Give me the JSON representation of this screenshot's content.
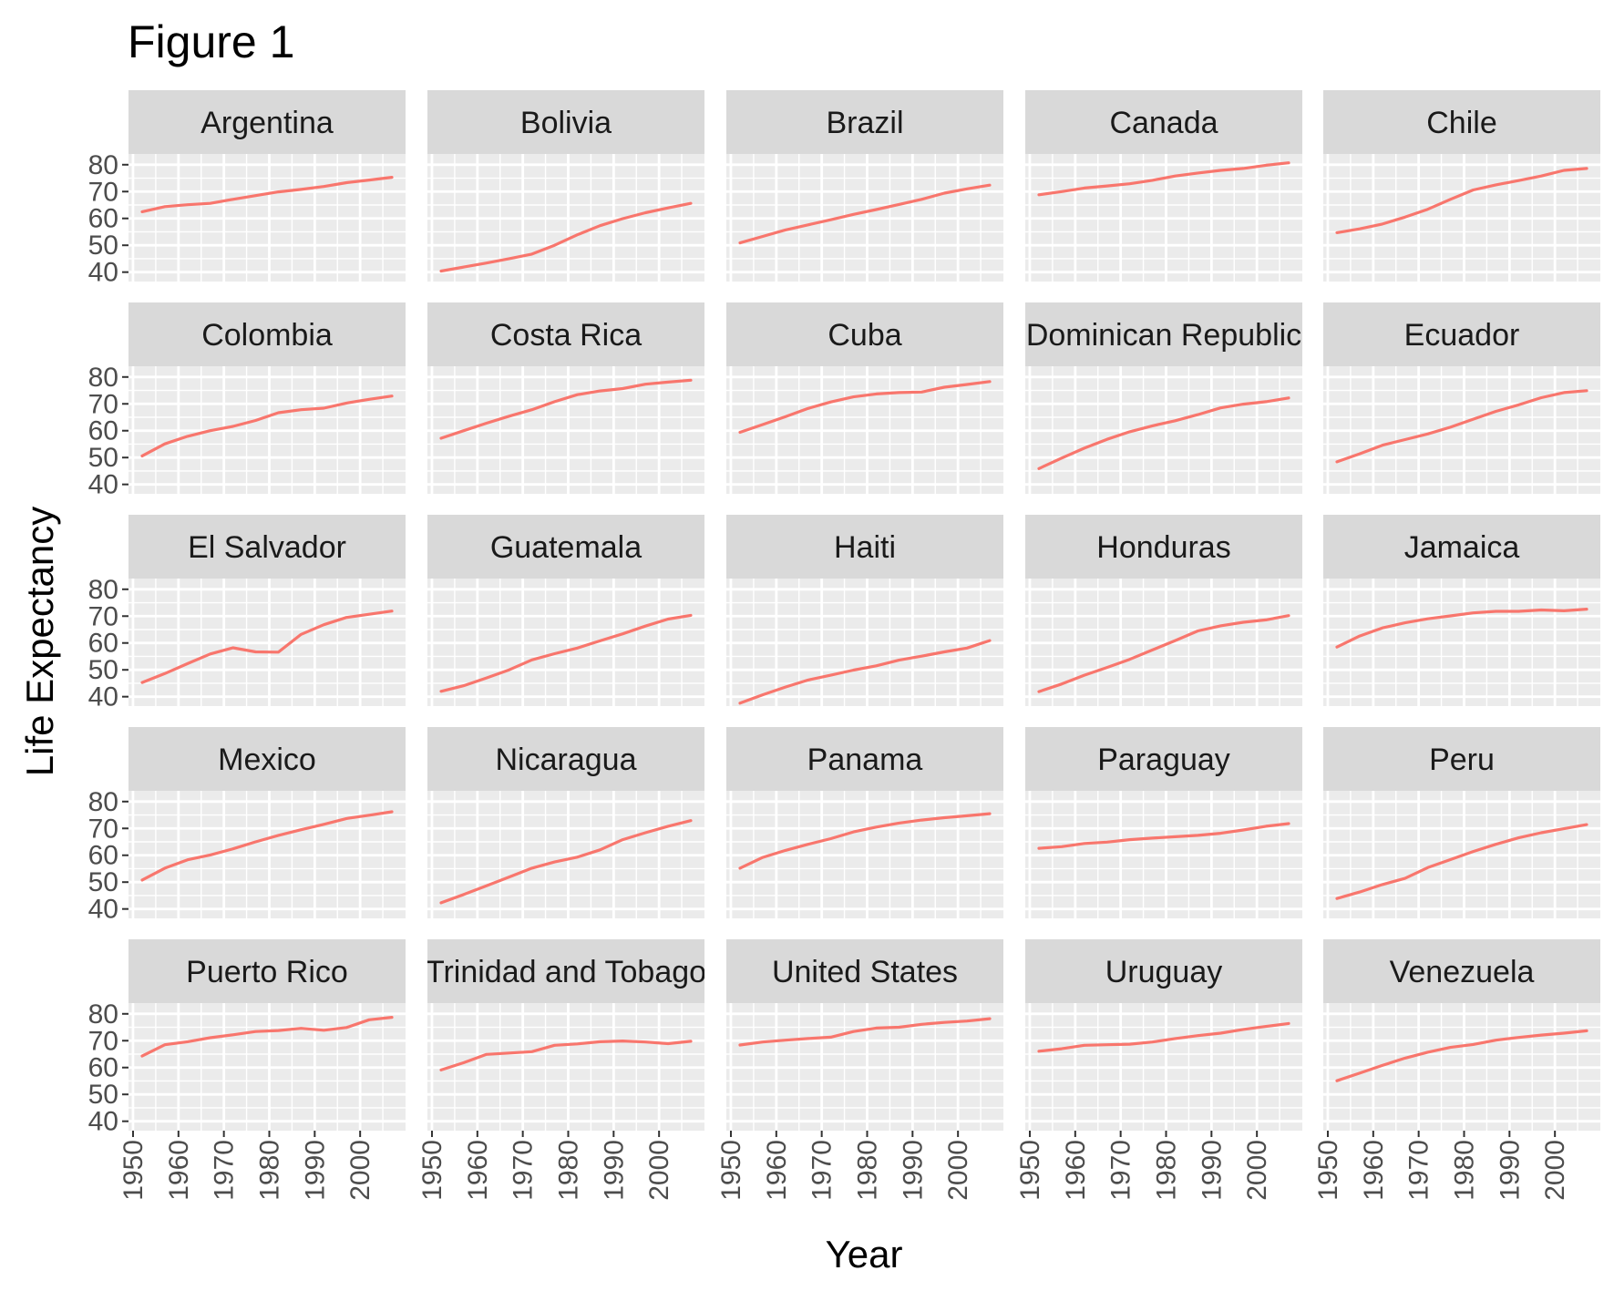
{
  "chart_data": {
    "type": "line",
    "title": "Figure 1",
    "xlabel": "Year",
    "ylabel": "Life Expectancy",
    "x": [
      1952,
      1957,
      1962,
      1967,
      1972,
      1977,
      1982,
      1987,
      1992,
      1997,
      2002,
      2007
    ],
    "xlim": [
      1949,
      2010
    ],
    "ylim": [
      36.5,
      84
    ],
    "xticks": [
      1950,
      1960,
      1970,
      1980,
      1990,
      2000
    ],
    "yticks": [
      40,
      50,
      60,
      70,
      80
    ],
    "line_color": "#F8766D",
    "panel_bg": "#EBEBEB",
    "strip_bg": "#D9D9D9",
    "grid": true,
    "layout": {
      "columns": 5,
      "rows": 5
    },
    "series": [
      {
        "name": "Argentina",
        "values": [
          62.5,
          64.4,
          65.1,
          65.6,
          67.1,
          68.5,
          69.9,
          70.8,
          71.9,
          73.3,
          74.3,
          75.3
        ]
      },
      {
        "name": "Bolivia",
        "values": [
          40.4,
          41.9,
          43.4,
          45.0,
          46.7,
          50.0,
          53.9,
          57.3,
          59.9,
          62.1,
          63.9,
          65.6
        ]
      },
      {
        "name": "Brazil",
        "values": [
          50.9,
          53.3,
          55.7,
          57.6,
          59.5,
          61.5,
          63.3,
          65.2,
          67.1,
          69.4,
          71.0,
          72.4
        ]
      },
      {
        "name": "Canada",
        "values": [
          68.8,
          70.0,
          71.3,
          72.1,
          72.9,
          74.2,
          75.8,
          76.9,
          77.9,
          78.6,
          79.8,
          80.7
        ]
      },
      {
        "name": "Chile",
        "values": [
          54.7,
          56.1,
          57.9,
          60.5,
          63.4,
          67.1,
          70.6,
          72.5,
          74.1,
          75.8,
          77.9,
          78.6
        ]
      },
      {
        "name": "Colombia",
        "values": [
          50.6,
          55.1,
          57.9,
          60.0,
          61.6,
          63.8,
          66.7,
          67.8,
          68.4,
          70.3,
          71.7,
          72.9
        ]
      },
      {
        "name": "Costa Rica",
        "values": [
          57.2,
          60.0,
          62.8,
          65.4,
          67.8,
          70.8,
          73.4,
          74.8,
          75.7,
          77.3,
          78.1,
          78.8
        ]
      },
      {
        "name": "Cuba",
        "values": [
          59.4,
          62.3,
          65.2,
          68.3,
          70.7,
          72.6,
          73.7,
          74.2,
          74.4,
          76.2,
          77.2,
          78.3
        ]
      },
      {
        "name": "Dominican Republic",
        "values": [
          45.9,
          49.8,
          53.5,
          56.8,
          59.6,
          61.8,
          63.7,
          66.0,
          68.5,
          69.9,
          70.8,
          72.2
        ]
      },
      {
        "name": "Ecuador",
        "values": [
          48.4,
          51.4,
          54.6,
          56.7,
          58.8,
          61.3,
          64.3,
          67.2,
          69.6,
          72.3,
          74.2,
          74.9
        ]
      },
      {
        "name": "El Salvador",
        "values": [
          45.3,
          48.6,
          52.3,
          55.9,
          58.2,
          56.7,
          56.6,
          63.2,
          66.8,
          69.5,
          70.7,
          71.9
        ]
      },
      {
        "name": "Guatemala",
        "values": [
          42.0,
          44.1,
          47.0,
          50.0,
          53.7,
          56.0,
          58.1,
          60.8,
          63.4,
          66.3,
          68.9,
          70.3
        ]
      },
      {
        "name": "Haiti",
        "values": [
          37.6,
          40.7,
          43.6,
          46.2,
          48.0,
          49.9,
          51.5,
          53.6,
          55.1,
          56.7,
          58.1,
          60.9
        ]
      },
      {
        "name": "Honduras",
        "values": [
          41.9,
          44.7,
          48.0,
          50.9,
          53.9,
          57.4,
          60.9,
          64.5,
          66.4,
          67.7,
          68.6,
          70.2
        ]
      },
      {
        "name": "Jamaica",
        "values": [
          58.5,
          62.6,
          65.6,
          67.5,
          69.0,
          70.1,
          71.2,
          71.8,
          71.8,
          72.3,
          72.0,
          72.6
        ]
      },
      {
        "name": "Mexico",
        "values": [
          50.8,
          55.2,
          58.3,
          60.1,
          62.4,
          65.0,
          67.4,
          69.5,
          71.5,
          73.7,
          74.9,
          76.2
        ]
      },
      {
        "name": "Nicaragua",
        "values": [
          42.3,
          45.4,
          48.6,
          51.9,
          55.2,
          57.5,
          59.3,
          62.0,
          65.8,
          68.4,
          70.8,
          72.9
        ]
      },
      {
        "name": "Panama",
        "values": [
          55.2,
          59.2,
          61.8,
          64.1,
          66.2,
          68.7,
          70.5,
          72.0,
          73.1,
          74.0,
          74.7,
          75.5
        ]
      },
      {
        "name": "Paraguay",
        "values": [
          62.6,
          63.2,
          64.4,
          64.9,
          65.8,
          66.4,
          66.9,
          67.4,
          68.2,
          69.4,
          70.8,
          71.8
        ]
      },
      {
        "name": "Peru",
        "values": [
          43.9,
          46.3,
          49.1,
          51.4,
          55.4,
          58.4,
          61.4,
          64.1,
          66.5,
          68.4,
          69.9,
          71.4
        ]
      },
      {
        "name": "Puerto Rico",
        "values": [
          64.3,
          68.5,
          69.6,
          71.1,
          72.2,
          73.4,
          73.8,
          74.6,
          73.9,
          74.9,
          77.8,
          78.7
        ]
      },
      {
        "name": "Trinidad and Tobago",
        "values": [
          59.1,
          61.8,
          64.9,
          65.4,
          65.9,
          68.3,
          68.8,
          69.6,
          69.9,
          69.5,
          68.9,
          69.8
        ]
      },
      {
        "name": "United States",
        "values": [
          68.4,
          69.5,
          70.2,
          70.8,
          71.3,
          73.4,
          74.7,
          75.0,
          76.1,
          76.8,
          77.3,
          78.2
        ]
      },
      {
        "name": "Uruguay",
        "values": [
          66.1,
          67.0,
          68.3,
          68.5,
          68.7,
          69.5,
          70.8,
          71.9,
          72.8,
          74.2,
          75.3,
          76.4
        ]
      },
      {
        "name": "Venezuela",
        "values": [
          55.1,
          57.9,
          60.8,
          63.5,
          65.7,
          67.5,
          68.6,
          70.2,
          71.2,
          72.1,
          72.8,
          73.7
        ]
      }
    ]
  }
}
